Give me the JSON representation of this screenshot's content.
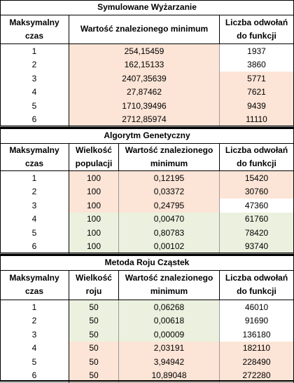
{
  "colors": {
    "orange": "#fce4d6",
    "green": "#ebf1de",
    "white": "#ffffff",
    "border": "#000000"
  },
  "sections": [
    {
      "title": "Symulowane Wyżarzanie",
      "headers": [
        "Maksymalny czas",
        "Wartość znalezionego minimum",
        "Liczba odwołań do funkcji"
      ],
      "rows": [
        {
          "c": [
            "1",
            "254,15459",
            "1937"
          ],
          "bg": [
            "white",
            "orange",
            "white"
          ]
        },
        {
          "c": [
            "2",
            "162,15133",
            "3860"
          ],
          "bg": [
            "white",
            "orange",
            "white"
          ]
        },
        {
          "c": [
            "3",
            "2407,35639",
            "5771"
          ],
          "bg": [
            "white",
            "orange",
            "orange"
          ]
        },
        {
          "c": [
            "4",
            "27,87462",
            "7621"
          ],
          "bg": [
            "white",
            "orange",
            "orange"
          ]
        },
        {
          "c": [
            "5",
            "1710,39496",
            "9439"
          ],
          "bg": [
            "white",
            "orange",
            "orange"
          ]
        },
        {
          "c": [
            "6",
            "2712,85974",
            "11110"
          ],
          "bg": [
            "white",
            "orange",
            "orange"
          ]
        }
      ]
    },
    {
      "title": "Algorytm Genetyczny",
      "headers": [
        "Maksymalny czas",
        "Wielkość populacji",
        "Wartość znalezionego minimum",
        "Liczba odwołań do funkcji"
      ],
      "rows": [
        {
          "c": [
            "1",
            "100",
            "0,12195",
            "15420"
          ],
          "bg": [
            "white",
            "orange",
            "orange",
            "orange"
          ]
        },
        {
          "c": [
            "2",
            "100",
            "0,03372",
            "30760"
          ],
          "bg": [
            "white",
            "orange",
            "orange",
            "orange"
          ]
        },
        {
          "c": [
            "3",
            "100",
            "0,24795",
            "47360"
          ],
          "bg": [
            "white",
            "orange",
            "orange",
            "white"
          ]
        },
        {
          "c": [
            "4",
            "100",
            "0,00470",
            "61760"
          ],
          "bg": [
            "white",
            "green",
            "green",
            "green"
          ]
        },
        {
          "c": [
            "5",
            "100",
            "0,80783",
            "78420"
          ],
          "bg": [
            "white",
            "green",
            "green",
            "green"
          ]
        },
        {
          "c": [
            "6",
            "100",
            "0,00102",
            "93740"
          ],
          "bg": [
            "white",
            "green",
            "green",
            "green"
          ]
        }
      ]
    },
    {
      "title": "Metoda Roju Cząstek",
      "headers": [
        "Maksymalny czas",
        "Wielkość roju",
        "Wartość znalezionego minimum",
        "Liczba odwołań do funkcji"
      ],
      "rows": [
        {
          "c": [
            "1",
            "50",
            "0,06268",
            "46010"
          ],
          "bg": [
            "white",
            "green",
            "green",
            "white"
          ]
        },
        {
          "c": [
            "2",
            "50",
            "0,00618",
            "91690"
          ],
          "bg": [
            "white",
            "green",
            "green",
            "white"
          ]
        },
        {
          "c": [
            "3",
            "50",
            "0,00009",
            "136180"
          ],
          "bg": [
            "white",
            "green",
            "green",
            "white"
          ]
        },
        {
          "c": [
            "4",
            "50",
            "2,03191",
            "182110"
          ],
          "bg": [
            "white",
            "orange",
            "orange",
            "orange"
          ]
        },
        {
          "c": [
            "5",
            "50",
            "3,94942",
            "228490"
          ],
          "bg": [
            "white",
            "orange",
            "orange",
            "orange"
          ]
        },
        {
          "c": [
            "6",
            "50",
            "10,89048",
            "272280"
          ],
          "bg": [
            "white",
            "orange",
            "orange",
            "orange"
          ]
        }
      ]
    }
  ]
}
